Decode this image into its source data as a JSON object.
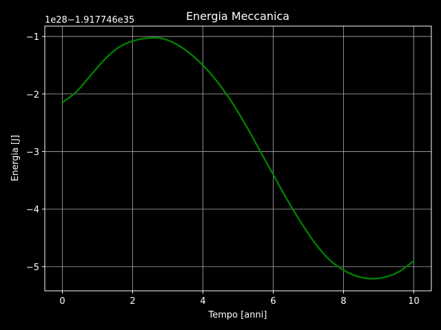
{
  "chart_data": {
    "type": "line",
    "title": "Energia Meccanica",
    "xlabel": "Tempo [anni]",
    "ylabel": "Energia [J]",
    "offset_label": "1e28−1.917746e35",
    "xlim": [
      -0.5,
      10.5
    ],
    "ylim": [
      -5.42,
      -0.82
    ],
    "xticks": [
      0,
      2,
      4,
      6,
      8,
      10
    ],
    "xtick_labels": [
      "0",
      "2",
      "4",
      "6",
      "8",
      "10"
    ],
    "yticks": [
      -1,
      -2,
      -3,
      -4,
      -5
    ],
    "ytick_labels": [
      "−1",
      "−2",
      "−3",
      "−4",
      "−5"
    ],
    "grid": true,
    "colors": {
      "background": "#000000",
      "foreground": "#ffffff",
      "line": "#008000",
      "grid": "#b0b0b0"
    },
    "series": [
      {
        "x": [
          0,
          0.4,
          0.8,
          1.2,
          1.6,
          2.0,
          2.4,
          2.8,
          3.2,
          3.6,
          4.0,
          4.4,
          4.8,
          5.2,
          5.6,
          6.0,
          6.4,
          6.8,
          7.2,
          7.6,
          8.0,
          8.4,
          8.8,
          9.2,
          9.6,
          10.0
        ],
        "y": [
          -2.15,
          -1.96,
          -1.68,
          -1.4,
          -1.19,
          -1.08,
          -1.03,
          -1.03,
          -1.12,
          -1.28,
          -1.5,
          -1.78,
          -2.12,
          -2.52,
          -2.96,
          -3.4,
          -3.84,
          -4.24,
          -4.6,
          -4.88,
          -5.06,
          -5.17,
          -5.21,
          -5.18,
          -5.08,
          -4.9
        ]
      }
    ]
  }
}
